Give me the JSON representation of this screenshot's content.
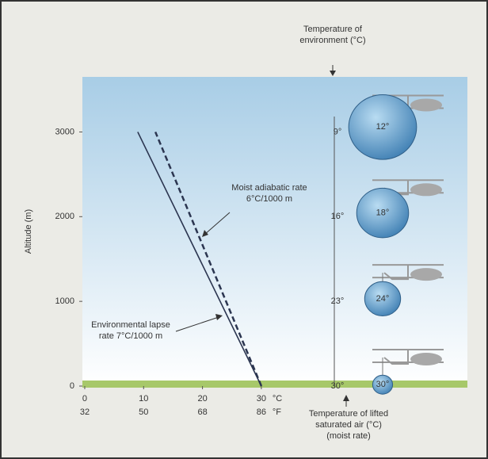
{
  "chart_data": {
    "type": "line",
    "y_label": "Altitude (m)",
    "ylim": [
      0,
      3650
    ],
    "yticks": [
      0,
      1000,
      2000,
      3000
    ],
    "xlim": [
      -0.4,
      65
    ],
    "xticks": [
      0,
      10,
      20,
      30
    ],
    "x_unit": "°C",
    "x2ticks": [
      {
        "value": 0,
        "label": "32"
      },
      {
        "value": 10,
        "label": "50"
      },
      {
        "value": 20,
        "label": "68"
      },
      {
        "value": 30,
        "label": "86"
      }
    ],
    "x2_unit": "°F",
    "series": [
      {
        "name": "Environmental lapse rate 7°C/1000 m",
        "color": "#2b3550",
        "dash": false,
        "x": [
          30,
          9
        ],
        "y": [
          0,
          3000
        ]
      },
      {
        "name": "Moist adiabatic rate 6°C/1000 m",
        "color": "#2b3550",
        "dash": true,
        "x": [
          30,
          12
        ],
        "y": [
          0,
          3000
        ]
      }
    ],
    "environment": {
      "label": "Temperature of environment (°C)",
      "altitudes": [
        3000,
        2000,
        1000,
        0
      ],
      "values": [
        9,
        16,
        23,
        30
      ],
      "value_labels": [
        "9°",
        "16°",
        "23°",
        "30°"
      ]
    },
    "lifted": {
      "label": "Temperature of lifted saturated air (°C) (moist rate)",
      "altitudes": [
        3000,
        2000,
        1000,
        0
      ],
      "values": [
        12,
        18,
        24,
        30
      ],
      "value_labels": [
        "12°",
        "18°",
        "24°",
        "30°"
      ]
    }
  }
}
